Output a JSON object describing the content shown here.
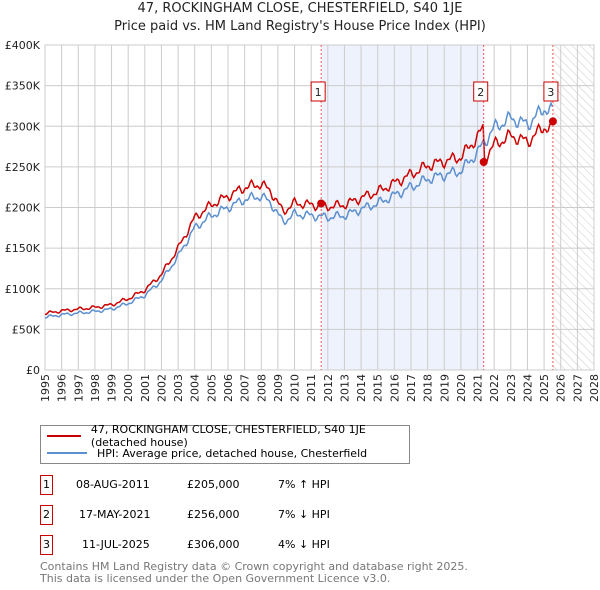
{
  "title_line1": "47, ROCKINGHAM CLOSE, CHESTERFIELD, S40 1JE",
  "title_line2": "Price paid vs. HM Land Registry's House Price Index (HPI)",
  "legend": {
    "red": "47, ROCKINGHAM CLOSE, CHESTERFIELD, S40 1JE (detached house)",
    "blue": "HPI: Average price, detached house, Chesterfield"
  },
  "transactions": [
    {
      "n": "1",
      "date": "08-AUG-2011",
      "price": "£205,000",
      "hpi": "7% ↑ HPI"
    },
    {
      "n": "2",
      "date": "17-MAY-2021",
      "price": "£256,000",
      "hpi": "7% ↓ HPI"
    },
    {
      "n": "3",
      "date": "11-JUL-2025",
      "price": "£306,000",
      "hpi": "4% ↓ HPI"
    }
  ],
  "footer1": "Contains HM Land Registry data © Crown copyright and database right 2025.",
  "footer2": "This data is licensed under the Open Government Licence v3.0.",
  "colors": {
    "red": "#cc0000",
    "blue": "#5b8fd0",
    "shade": "#eef2fc"
  },
  "chart_data": {
    "type": "line",
    "xlim": [
      1995,
      2028
    ],
    "ylim": [
      0,
      400000
    ],
    "yticks": [
      {
        "v": 0,
        "l": "£0"
      },
      {
        "v": 50000,
        "l": "£50K"
      },
      {
        "v": 100000,
        "l": "£100K"
      },
      {
        "v": 150000,
        "l": "£150K"
      },
      {
        "v": 200000,
        "l": "£200K"
      },
      {
        "v": 250000,
        "l": "£250K"
      },
      {
        "v": 300000,
        "l": "£300K"
      },
      {
        "v": 350000,
        "l": "£350K"
      },
      {
        "v": 400000,
        "l": "£400K"
      }
    ],
    "xticks": [
      "1995",
      "1996",
      "1997",
      "1998",
      "1999",
      "2000",
      "2001",
      "2002",
      "2003",
      "2004",
      "2005",
      "2006",
      "2007",
      "2008",
      "2009",
      "2010",
      "2011",
      "2012",
      "2013",
      "2014",
      "2015",
      "2016",
      "2017",
      "2018",
      "2019",
      "2020",
      "2021",
      "2022",
      "2023",
      "2024",
      "2025",
      "2026",
      "2027",
      "2028"
    ],
    "hpi": {
      "x": [
        1995,
        1996,
        1997,
        1998,
        1999,
        2000,
        2001,
        2002,
        2003,
        2004,
        2005,
        2006,
        2007,
        2008,
        2008.6,
        2009.3,
        2010,
        2011,
        2012,
        2013,
        2014,
        2015,
        2016,
        2017,
        2018,
        2019,
        2020,
        2021,
        2022,
        2023,
        2024,
        2025,
        2025.5
      ],
      "y": [
        65000,
        68000,
        70000,
        72000,
        75000,
        82000,
        92000,
        110000,
        140000,
        175000,
        190000,
        200000,
        210000,
        214000,
        205000,
        182000,
        192000,
        190000,
        188000,
        190000,
        198000,
        205000,
        215000,
        225000,
        235000,
        240000,
        245000,
        268000,
        298000,
        310000,
        302000,
        322000,
        318000
      ]
    },
    "price_paid_ratio_before_2021": 1.07,
    "price_paid_ratio_after_2021": 0.93,
    "sales": [
      {
        "label": "1",
        "x": 2011.6,
        "y": 205000
      },
      {
        "label": "2",
        "x": 2021.37,
        "y": 256000
      },
      {
        "label": "3",
        "x": 2025.53,
        "y": 306000
      }
    ],
    "shaded_range": [
      2011.6,
      2021.37
    ],
    "forecast_hatch_from": 2025.53
  }
}
